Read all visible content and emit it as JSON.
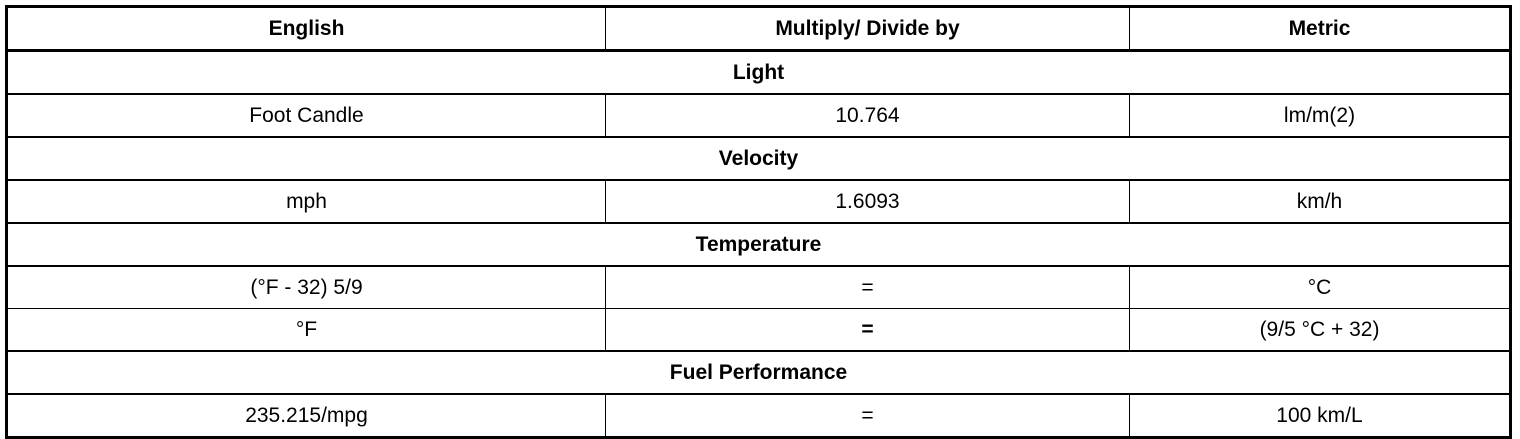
{
  "headers": {
    "english": "English",
    "factor": "Multiply/ Divide by",
    "metric": "Metric"
  },
  "sections": [
    {
      "title": "Light",
      "rows": [
        {
          "english": "Foot Candle",
          "factor": "10.764",
          "metric": "lm/m(2)"
        }
      ]
    },
    {
      "title": "Velocity",
      "rows": [
        {
          "english": "mph",
          "factor": "1.6093",
          "metric": "km/h"
        }
      ]
    },
    {
      "title": "Temperature",
      "rows": [
        {
          "english": "(°F - 32) 5/9",
          "factor": "=",
          "metric": "°C"
        },
        {
          "english": "°F",
          "factor": "=",
          "metric": "(9/5 °C + 32)"
        }
      ]
    },
    {
      "title": "Fuel Performance",
      "rows": [
        {
          "english": "235.215/mpg",
          "factor": "=",
          "metric": "100 km/L"
        }
      ]
    }
  ]
}
